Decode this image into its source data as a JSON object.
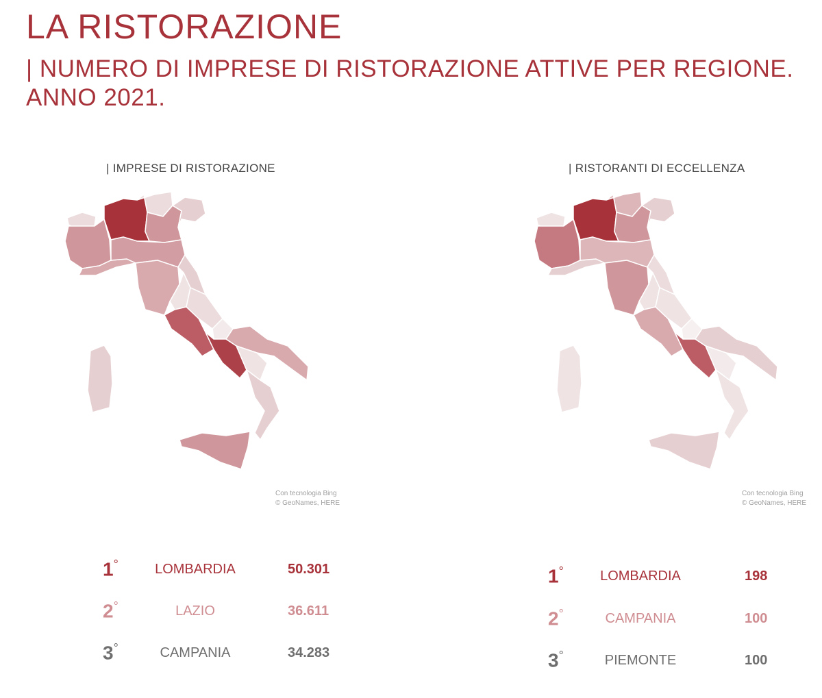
{
  "header": {
    "title": "LA RISTORAZIONE",
    "subtitle": "| NUMERO DI IMPRESE DI RISTORAZIONE ATTIVE PER REGIONE. ANNO 2021."
  },
  "colors": {
    "accent": "#a8323a",
    "second": "#cf8d92",
    "third": "#6f6f6f"
  },
  "panels": [
    {
      "title": "| IMPRESE DI RISTORAZIONE",
      "credit_line1": "Con tecnologia Bing",
      "credit_line2": "© GeoNames, HERE",
      "ranking": [
        {
          "rank": "1",
          "sup": "°",
          "region": "LOMBARDIA",
          "value": "50.301"
        },
        {
          "rank": "2",
          "sup": "°",
          "region": "LAZIO",
          "value": "36.611"
        },
        {
          "rank": "3",
          "sup": "°",
          "region": "CAMPANIA",
          "value": "34.283"
        }
      ]
    },
    {
      "title": "| RISTORANTI DI ECCELLENZA",
      "credit_line1": "Con tecnologia Bing",
      "credit_line2": "© GeoNames, HERE",
      "ranking": [
        {
          "rank": "1",
          "sup": "°",
          "region": "LOMBARDIA",
          "value": "198"
        },
        {
          "rank": "2",
          "sup": "°",
          "region": "CAMPANIA",
          "value": "100"
        },
        {
          "rank": "3",
          "sup": "°",
          "region": "PIEMONTE",
          "value": "100"
        }
      ]
    }
  ]
}
